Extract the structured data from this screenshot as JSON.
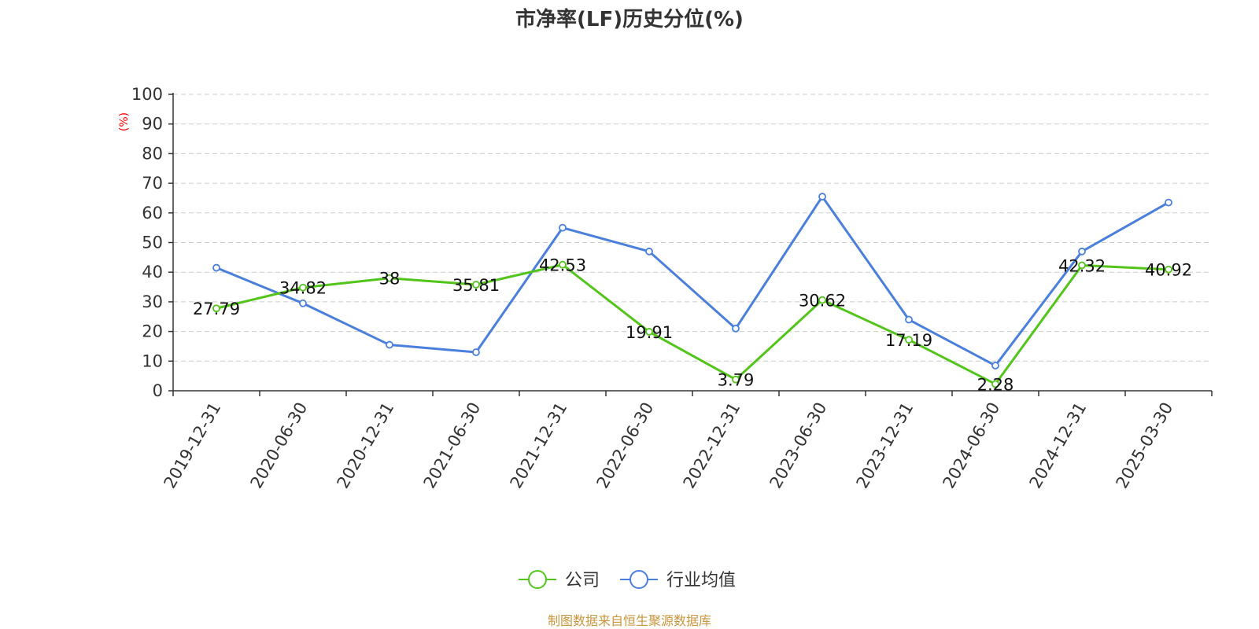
{
  "chart_data": {
    "type": "line",
    "title": "市净率(LF)历史分位(%)",
    "y_unit": "(%)",
    "ylim": [
      0,
      100
    ],
    "y_ticks": [
      "0",
      "10",
      "20",
      "30",
      "40",
      "50",
      "60",
      "70",
      "80",
      "90",
      "100"
    ],
    "grid": true,
    "categories": [
      "2019-12-31",
      "2020-06-30",
      "2020-12-31",
      "2021-06-30",
      "2021-12-31",
      "2022-06-30",
      "2022-12-31",
      "2023-06-30",
      "2023-12-31",
      "2024-06-30",
      "2024-12-31",
      "2025-03-30"
    ],
    "series": [
      {
        "name": "公司",
        "color": "#52c41a",
        "values": [
          27.79,
          34.82,
          38,
          35.81,
          42.53,
          19.91,
          3.79,
          30.62,
          17.19,
          2.28,
          42.32,
          40.92
        ],
        "labels": [
          "27.79",
          "34.82",
          "38",
          "35.81",
          "42.53",
          "19.91",
          "3.79",
          "30.62",
          "17.19",
          "2.28",
          "42.32",
          "40.92"
        ]
      },
      {
        "name": "行业均值",
        "color": "#4a7fdc",
        "values": [
          41.5,
          29.5,
          15.5,
          13,
          55,
          47,
          21,
          65.5,
          24,
          8.5,
          47,
          63.5
        ]
      }
    ],
    "legend_position": "bottom-center",
    "source_note": "制图数据来自恒生聚源数据库"
  }
}
